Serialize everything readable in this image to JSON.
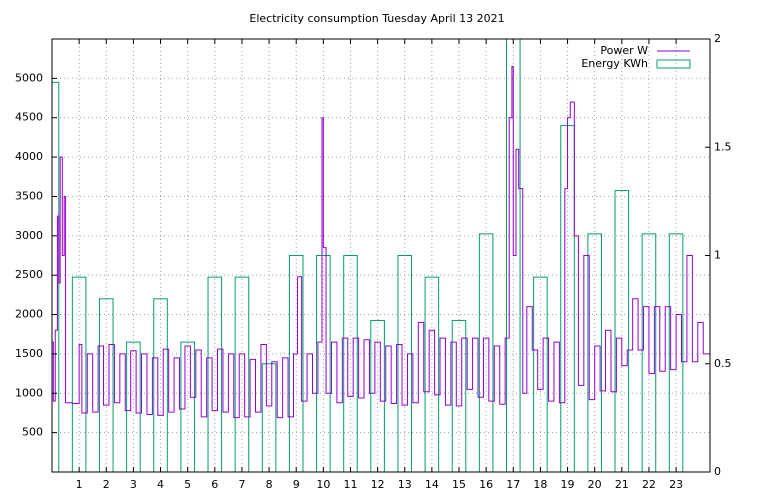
{
  "chart_data": {
    "type": "line",
    "title": "Electricity consumption Tuesday April 13 2021",
    "xlim": [
      0,
      24.25
    ],
    "xticks": [
      1,
      2,
      3,
      4,
      5,
      6,
      7,
      8,
      9,
      10,
      11,
      12,
      13,
      14,
      15,
      16,
      17,
      18,
      19,
      20,
      21,
      22,
      23
    ],
    "ylim": [
      0,
      5500
    ],
    "yticks": [
      500,
      1000,
      1500,
      2000,
      2500,
      3000,
      3500,
      4000,
      4500,
      5000
    ],
    "y2lim": [
      0,
      2
    ],
    "y2ticks": [
      0,
      0.5,
      1,
      1.5,
      2
    ],
    "grid": true,
    "legend": "top-right",
    "series": [
      {
        "name": "Power W",
        "color": "#9400d3",
        "style": "steps",
        "x": [
          0,
          0.05,
          0.12,
          0.2,
          0.25,
          0.3,
          0.38,
          0.45,
          0.5,
          0.75,
          1.0,
          1.1,
          1.3,
          1.5,
          1.7,
          1.9,
          2.1,
          2.3,
          2.5,
          2.7,
          2.9,
          3.1,
          3.3,
          3.5,
          3.7,
          3.9,
          4.1,
          4.3,
          4.5,
          4.7,
          4.9,
          5.1,
          5.3,
          5.5,
          5.7,
          5.9,
          6.1,
          6.3,
          6.5,
          6.7,
          6.9,
          7.1,
          7.3,
          7.5,
          7.7,
          7.9,
          8.1,
          8.3,
          8.5,
          8.7,
          8.9,
          9.05,
          9.2,
          9.4,
          9.6,
          9.8,
          9.95,
          10.0,
          10.1,
          10.3,
          10.5,
          10.7,
          10.9,
          11.1,
          11.3,
          11.5,
          11.7,
          11.9,
          12.1,
          12.3,
          12.5,
          12.7,
          12.9,
          13.1,
          13.3,
          13.5,
          13.7,
          13.9,
          14.1,
          14.3,
          14.5,
          14.7,
          14.9,
          15.1,
          15.3,
          15.5,
          15.7,
          15.9,
          16.1,
          16.3,
          16.5,
          16.7,
          16.85,
          16.95,
          17.0,
          17.1,
          17.2,
          17.35,
          17.5,
          17.7,
          17.9,
          18.1,
          18.3,
          18.5,
          18.7,
          18.9,
          19.0,
          19.1,
          19.25,
          19.4,
          19.6,
          19.8,
          20.0,
          20.2,
          20.4,
          20.6,
          20.8,
          21.0,
          21.2,
          21.4,
          21.6,
          21.8,
          22.0,
          22.2,
          22.4,
          22.6,
          22.8,
          23.0,
          23.2,
          23.4,
          23.6,
          23.8,
          24.0
        ],
        "values": [
          1650,
          900,
          1800,
          3250,
          2400,
          4000,
          2750,
          3500,
          880,
          870,
          1620,
          750,
          1500,
          760,
          1600,
          850,
          1620,
          880,
          1500,
          780,
          1540,
          750,
          1500,
          730,
          1450,
          720,
          1560,
          760,
          1450,
          800,
          1600,
          950,
          1550,
          700,
          1450,
          780,
          1560,
          760,
          1500,
          690,
          1500,
          700,
          1430,
          760,
          1620,
          840,
          1400,
          690,
          1450,
          700,
          1500,
          2480,
          900,
          1500,
          1000,
          1650,
          4500,
          2850,
          1000,
          1650,
          880,
          1700,
          960,
          1700,
          940,
          1680,
          1000,
          1650,
          900,
          1600,
          870,
          1620,
          850,
          1500,
          880,
          1900,
          1020,
          1800,
          980,
          1700,
          850,
          1650,
          840,
          1700,
          1050,
          1700,
          950,
          1700,
          900,
          1600,
          860,
          1700,
          4500,
          5150,
          2750,
          4100,
          3600,
          1000,
          2100,
          1550,
          1050,
          1700,
          900,
          1650,
          880,
          3600,
          4500,
          4700,
          3000,
          1100,
          2750,
          920,
          1600,
          1030,
          1800,
          1020,
          1700,
          1350,
          1550,
          2200,
          1550,
          2100,
          1250,
          2100,
          1280,
          2100,
          1300,
          2000,
          1400,
          2750,
          1400,
          1900,
          1500
        ]
      },
      {
        "name": "Energy KWh",
        "color": "#009e73",
        "style": "boxes",
        "axis": "y2",
        "x": [
          0,
          1,
          2,
          3,
          4,
          5,
          6,
          7,
          8,
          9,
          10,
          11,
          12,
          13,
          14,
          15,
          16,
          17,
          18,
          19,
          20,
          21,
          22,
          23
        ],
        "values": [
          1.8,
          0.9,
          0.8,
          0.6,
          0.8,
          0.6,
          0.9,
          0.9,
          0.5,
          1.0,
          1.0,
          1.0,
          0.7,
          1.0,
          0.9,
          0.7,
          1.1,
          2.1,
          0.9,
          1.6,
          1.1,
          1.3,
          1.1,
          1.1
        ]
      }
    ]
  }
}
